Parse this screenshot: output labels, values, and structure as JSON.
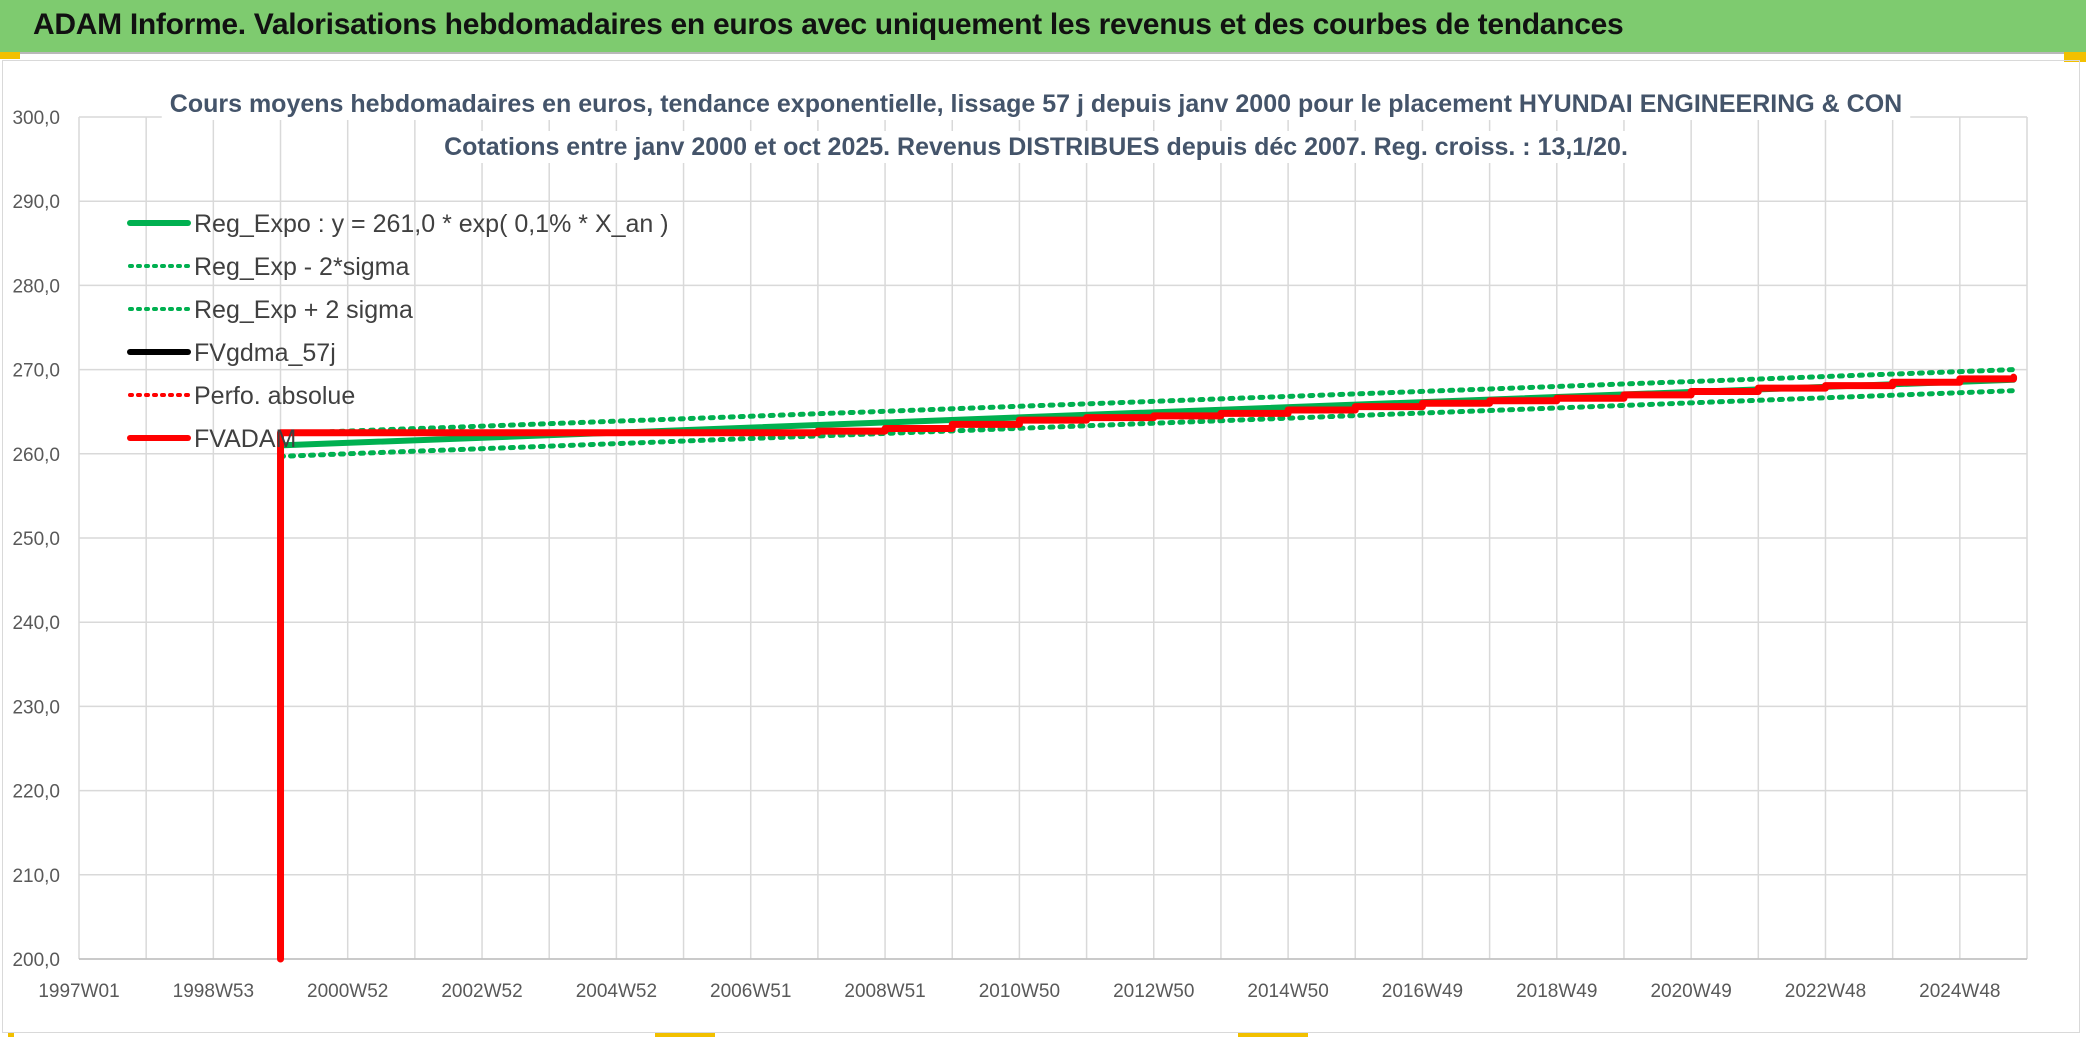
{
  "header": {
    "title": "ADAM Informe. Valorisations hebdomadaires en euros avec uniquement les revenus et des courbes de tendances"
  },
  "chart_data": {
    "type": "line",
    "title": "Cours moyens hebdomadaires en euros, tendance exponentielle, lissage 57 j depuis janv 2000 pour le placement HYUNDAI ENGINEERING & CON",
    "subtitle": "Cotations entre janv 2000 et oct 2025. Revenus DISTRIBUES depuis déc 2007. Reg. croiss. : 13,1/20.",
    "xlabel": "",
    "ylabel": "",
    "ylim": [
      200,
      300
    ],
    "y_ticks": [
      "200,0",
      "210,0",
      "220,0",
      "230,0",
      "240,0",
      "250,0",
      "260,0",
      "270,0",
      "280,0",
      "290,0",
      "300,0"
    ],
    "xlim": [
      1997.0,
      2026.0
    ],
    "x_ticks": [
      {
        "label": "1997W01",
        "x": 1997.0
      },
      {
        "label": "1998W53",
        "x": 1999.0
      },
      {
        "label": "2000W52",
        "x": 2001.0
      },
      {
        "label": "2002W52",
        "x": 2003.0
      },
      {
        "label": "2004W52",
        "x": 2005.0
      },
      {
        "label": "2006W51",
        "x": 2007.0
      },
      {
        "label": "2008W51",
        "x": 2009.0
      },
      {
        "label": "2010W50",
        "x": 2011.0
      },
      {
        "label": "2012W50",
        "x": 2013.0
      },
      {
        "label": "2014W50",
        "x": 2015.0
      },
      {
        "label": "2016W49",
        "x": 2017.0
      },
      {
        "label": "2018W49",
        "x": 2019.0
      },
      {
        "label": "2020W49",
        "x": 2021.0
      },
      {
        "label": "2022W48",
        "x": 2023.0
      },
      {
        "label": "2024W48",
        "x": 2025.0
      }
    ],
    "grid": true,
    "legend_position": "top-left",
    "series": [
      {
        "name": "Reg_Expo : y = 261,0 * exp( 0,1% *  X_an )",
        "color": "#00b050",
        "style": "solid",
        "x": [
          2000.0,
          2025.8
        ],
        "y": [
          261.0,
          268.8
        ]
      },
      {
        "name": "Reg_Exp - 2*sigma",
        "color": "#00b050",
        "style": "dotted",
        "x": [
          2000.0,
          2025.8
        ],
        "y": [
          259.7,
          267.5
        ]
      },
      {
        "name": "Reg_Exp + 2 sigma",
        "color": "#00b050",
        "style": "dotted",
        "x": [
          2000.0,
          2025.8
        ],
        "y": [
          262.4,
          270.0
        ]
      },
      {
        "name": "FVgdma_57j",
        "color": "#000000",
        "style": "solid",
        "x": [],
        "y": []
      },
      {
        "name": "Perfo. absolue",
        "color": "#ff0000",
        "style": "dotted",
        "x": [],
        "y": []
      },
      {
        "name": "FVADAM",
        "color": "#ff0000",
        "style": "solid",
        "x": [
          2000.0,
          2000.0,
          2008.0,
          2009.0,
          2010.0,
          2011.0,
          2012.0,
          2013.0,
          2014.0,
          2015.0,
          2016.0,
          2017.0,
          2018.0,
          2019.0,
          2020.0,
          2021.0,
          2022.0,
          2023.0,
          2024.0,
          2025.0,
          2025.8
        ],
        "y": [
          200.0,
          262.5,
          262.7,
          263.0,
          263.5,
          264.0,
          264.3,
          264.5,
          264.8,
          265.2,
          265.6,
          266.0,
          266.3,
          266.6,
          267.0,
          267.4,
          267.8,
          268.1,
          268.5,
          268.9,
          269.1
        ]
      }
    ]
  }
}
